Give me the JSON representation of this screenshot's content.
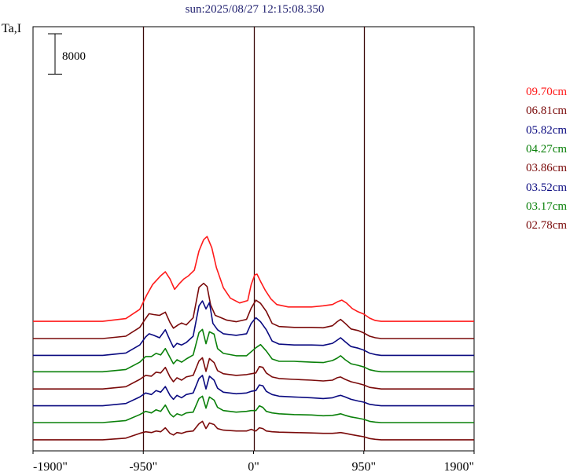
{
  "title": "sun:2025/08/27 12:15:08.350",
  "chart_data": {
    "type": "line",
    "ylabel": "Ta,I",
    "scale_bar": {
      "label": "8000",
      "value": 8000
    },
    "xlim": [
      -1900,
      1900
    ],
    "xticks": [
      {
        "value": -1900,
        "label": "-1900\""
      },
      {
        "value": -950,
        "label": "-950\""
      },
      {
        "value": 0,
        "label": "0\""
      },
      {
        "value": 950,
        "label": "950\""
      },
      {
        "value": 1900,
        "label": "1900\""
      }
    ],
    "vlines": [
      -950,
      0,
      950
    ],
    "grid": false,
    "legend_position": "right",
    "series": [
      {
        "name": "09.70cm",
        "color": "#ff1a1a",
        "baseline": 15500
      },
      {
        "name": "06.81cm",
        "color": "#7a0a0a",
        "baseline": 13350
      },
      {
        "name": "05.82cm",
        "color": "#0a0a80",
        "baseline": 11250
      },
      {
        "name": "04.27cm",
        "color": "#0a800a",
        "baseline": 9200
      },
      {
        "name": "03.86cm",
        "color": "#7a0a0a",
        "baseline": 7050
      },
      {
        "name": "03.52cm",
        "color": "#0a0a80",
        "baseline": 4950
      },
      {
        "name": "03.17cm",
        "color": "#0a800a",
        "baseline": 2850
      },
      {
        "name": "02.78cm",
        "color": "#7a0a0a",
        "baseline": 700
      }
    ],
    "profiles": [
      [
        [
          -1900,
          0
        ],
        [
          -1300,
          0
        ],
        [
          -1100,
          350
        ],
        [
          -980,
          1500
        ],
        [
          -920,
          3300
        ],
        [
          -870,
          4600
        ],
        [
          -800,
          5700
        ],
        [
          -760,
          6200
        ],
        [
          -720,
          5300
        ],
        [
          -680,
          4000
        ],
        [
          -640,
          4700
        ],
        [
          -600,
          5300
        ],
        [
          -560,
          5700
        ],
        [
          -510,
          6400
        ],
        [
          -470,
          8800
        ],
        [
          -430,
          10200
        ],
        [
          -400,
          10600
        ],
        [
          -360,
          9200
        ],
        [
          -320,
          6700
        ],
        [
          -260,
          4200
        ],
        [
          -200,
          2900
        ],
        [
          -120,
          2300
        ],
        [
          -50,
          2600
        ],
        [
          -20,
          4600
        ],
        [
          10,
          5800
        ],
        [
          30,
          5900
        ],
        [
          60,
          5000
        ],
        [
          100,
          3900
        ],
        [
          150,
          2800
        ],
        [
          200,
          2100
        ],
        [
          300,
          1800
        ],
        [
          500,
          1800
        ],
        [
          600,
          1950
        ],
        [
          680,
          2100
        ],
        [
          730,
          2500
        ],
        [
          760,
          2650
        ],
        [
          800,
          2300
        ],
        [
          850,
          1600
        ],
        [
          900,
          1200
        ],
        [
          950,
          900
        ],
        [
          1000,
          400
        ],
        [
          1050,
          100
        ],
        [
          1100,
          0
        ],
        [
          1900,
          0
        ]
      ],
      [
        [
          -1900,
          0
        ],
        [
          -1300,
          0
        ],
        [
          -1100,
          300
        ],
        [
          -980,
          1400
        ],
        [
          -930,
          2500
        ],
        [
          -900,
          3100
        ],
        [
          -860,
          3000
        ],
        [
          -810,
          2900
        ],
        [
          -760,
          3300
        ],
        [
          -720,
          2000
        ],
        [
          -690,
          1300
        ],
        [
          -650,
          1700
        ],
        [
          -620,
          1950
        ],
        [
          -580,
          1700
        ],
        [
          -520,
          2600
        ],
        [
          -470,
          6400
        ],
        [
          -430,
          6900
        ],
        [
          -400,
          6500
        ],
        [
          -370,
          4200
        ],
        [
          -330,
          2900
        ],
        [
          -280,
          2600
        ],
        [
          -230,
          2300
        ],
        [
          -150,
          2100
        ],
        [
          -60,
          2400
        ],
        [
          -20,
          3800
        ],
        [
          20,
          4800
        ],
        [
          60,
          4400
        ],
        [
          110,
          3400
        ],
        [
          160,
          1900
        ],
        [
          220,
          1500
        ],
        [
          350,
          1400
        ],
        [
          500,
          1400
        ],
        [
          600,
          1350
        ],
        [
          680,
          1600
        ],
        [
          720,
          2100
        ],
        [
          750,
          2400
        ],
        [
          790,
          1900
        ],
        [
          840,
          1200
        ],
        [
          900,
          1000
        ],
        [
          950,
          700
        ],
        [
          1000,
          300
        ],
        [
          1050,
          100
        ],
        [
          1100,
          0
        ],
        [
          1900,
          0
        ]
      ],
      [
        [
          -1900,
          0
        ],
        [
          -1300,
          0
        ],
        [
          -1100,
          300
        ],
        [
          -980,
          1300
        ],
        [
          -930,
          2300
        ],
        [
          -900,
          2700
        ],
        [
          -860,
          2500
        ],
        [
          -810,
          2200
        ],
        [
          -760,
          3200
        ],
        [
          -720,
          1900
        ],
        [
          -690,
          1000
        ],
        [
          -660,
          1500
        ],
        [
          -620,
          1300
        ],
        [
          -580,
          1600
        ],
        [
          -520,
          2400
        ],
        [
          -470,
          6200
        ],
        [
          -440,
          6800
        ],
        [
          -410,
          5800
        ],
        [
          -380,
          6600
        ],
        [
          -350,
          4000
        ],
        [
          -310,
          3200
        ],
        [
          -260,
          2700
        ],
        [
          -150,
          2500
        ],
        [
          -60,
          2700
        ],
        [
          -20,
          4000
        ],
        [
          20,
          4700
        ],
        [
          60,
          4200
        ],
        [
          110,
          3200
        ],
        [
          160,
          1800
        ],
        [
          220,
          1400
        ],
        [
          350,
          1300
        ],
        [
          500,
          1300
        ],
        [
          600,
          1250
        ],
        [
          680,
          1500
        ],
        [
          720,
          1900
        ],
        [
          750,
          2200
        ],
        [
          790,
          1700
        ],
        [
          840,
          1100
        ],
        [
          900,
          900
        ],
        [
          950,
          650
        ],
        [
          1000,
          280
        ],
        [
          1050,
          100
        ],
        [
          1100,
          0
        ],
        [
          1900,
          0
        ]
      ],
      [
        [
          -1900,
          0
        ],
        [
          -1300,
          0
        ],
        [
          -1100,
          280
        ],
        [
          -980,
          1200
        ],
        [
          -930,
          1900
        ],
        [
          -880,
          1900
        ],
        [
          -840,
          2300
        ],
        [
          -800,
          2100
        ],
        [
          -760,
          2900
        ],
        [
          -720,
          1800
        ],
        [
          -690,
          1000
        ],
        [
          -660,
          1500
        ],
        [
          -620,
          1200
        ],
        [
          -580,
          1600
        ],
        [
          -520,
          2100
        ],
        [
          -470,
          4900
        ],
        [
          -440,
          5300
        ],
        [
          -410,
          3500
        ],
        [
          -380,
          5000
        ],
        [
          -340,
          4700
        ],
        [
          -310,
          2900
        ],
        [
          -260,
          2300
        ],
        [
          -150,
          2000
        ],
        [
          -60,
          2000
        ],
        [
          -20,
          2500
        ],
        [
          20,
          3000
        ],
        [
          60,
          3400
        ],
        [
          110,
          2600
        ],
        [
          160,
          1600
        ],
        [
          220,
          1300
        ],
        [
          350,
          1300
        ],
        [
          500,
          1200
        ],
        [
          600,
          1150
        ],
        [
          680,
          1400
        ],
        [
          720,
          1700
        ],
        [
          750,
          2000
        ],
        [
          790,
          1500
        ],
        [
          840,
          1000
        ],
        [
          900,
          800
        ],
        [
          950,
          600
        ],
        [
          1000,
          250
        ],
        [
          1050,
          100
        ],
        [
          1100,
          0
        ],
        [
          1900,
          0
        ]
      ],
      [
        [
          -1900,
          0
        ],
        [
          -1300,
          0
        ],
        [
          -1100,
          280
        ],
        [
          -980,
          1200
        ],
        [
          -930,
          1700
        ],
        [
          -880,
          1600
        ],
        [
          -840,
          2100
        ],
        [
          -800,
          2000
        ],
        [
          -760,
          2700
        ],
        [
          -720,
          1500
        ],
        [
          -690,
          900
        ],
        [
          -660,
          1400
        ],
        [
          -620,
          1100
        ],
        [
          -580,
          1500
        ],
        [
          -520,
          1700
        ],
        [
          -470,
          3500
        ],
        [
          -440,
          3900
        ],
        [
          -410,
          2200
        ],
        [
          -380,
          3800
        ],
        [
          -340,
          3300
        ],
        [
          -310,
          2300
        ],
        [
          -260,
          1900
        ],
        [
          -150,
          1700
        ],
        [
          -60,
          1800
        ],
        [
          -20,
          1900
        ],
        [
          20,
          2000
        ],
        [
          50,
          2800
        ],
        [
          80,
          2700
        ],
        [
          110,
          2000
        ],
        [
          160,
          1500
        ],
        [
          220,
          1300
        ],
        [
          350,
          1200
        ],
        [
          500,
          1100
        ],
        [
          600,
          1000
        ],
        [
          680,
          1100
        ],
        [
          720,
          1400
        ],
        [
          750,
          1500
        ],
        [
          790,
          1200
        ],
        [
          840,
          900
        ],
        [
          900,
          700
        ],
        [
          950,
          500
        ],
        [
          1000,
          200
        ],
        [
          1050,
          100
        ],
        [
          1100,
          0
        ],
        [
          1900,
          0
        ]
      ],
      [
        [
          -1900,
          0
        ],
        [
          -1300,
          0
        ],
        [
          -1100,
          280
        ],
        [
          -980,
          1100
        ],
        [
          -930,
          1600
        ],
        [
          -880,
          1400
        ],
        [
          -840,
          1900
        ],
        [
          -800,
          1700
        ],
        [
          -760,
          2400
        ],
        [
          -720,
          1300
        ],
        [
          -690,
          800
        ],
        [
          -660,
          1300
        ],
        [
          -620,
          1000
        ],
        [
          -580,
          1400
        ],
        [
          -520,
          1600
        ],
        [
          -470,
          3400
        ],
        [
          -440,
          3800
        ],
        [
          -410,
          2100
        ],
        [
          -380,
          3700
        ],
        [
          -340,
          3200
        ],
        [
          -310,
          2200
        ],
        [
          -260,
          1700
        ],
        [
          -150,
          1500
        ],
        [
          -60,
          1600
        ],
        [
          -20,
          1800
        ],
        [
          20,
          1900
        ],
        [
          50,
          2600
        ],
        [
          80,
          2500
        ],
        [
          110,
          1800
        ],
        [
          160,
          1400
        ],
        [
          220,
          1200
        ],
        [
          350,
          1100
        ],
        [
          500,
          1000
        ],
        [
          600,
          900
        ],
        [
          680,
          1000
        ],
        [
          720,
          1200
        ],
        [
          750,
          1300
        ],
        [
          790,
          1100
        ],
        [
          840,
          800
        ],
        [
          900,
          600
        ],
        [
          950,
          450
        ],
        [
          1000,
          180
        ],
        [
          1050,
          80
        ],
        [
          1100,
          0
        ],
        [
          1900,
          0
        ]
      ],
      [
        [
          -1900,
          0
        ],
        [
          -1300,
          0
        ],
        [
          -1100,
          250
        ],
        [
          -980,
          1000
        ],
        [
          -930,
          1400
        ],
        [
          -880,
          1200
        ],
        [
          -840,
          1600
        ],
        [
          -800,
          1400
        ],
        [
          -760,
          2200
        ],
        [
          -720,
          1100
        ],
        [
          -690,
          700
        ],
        [
          -660,
          1100
        ],
        [
          -620,
          900
        ],
        [
          -580,
          1200
        ],
        [
          -520,
          1300
        ],
        [
          -470,
          3000
        ],
        [
          -440,
          3300
        ],
        [
          -410,
          1800
        ],
        [
          -380,
          3200
        ],
        [
          -340,
          2800
        ],
        [
          -310,
          1900
        ],
        [
          -260,
          1500
        ],
        [
          -150,
          1300
        ],
        [
          -60,
          1400
        ],
        [
          -20,
          1500
        ],
        [
          20,
          1500
        ],
        [
          50,
          2100
        ],
        [
          80,
          1900
        ],
        [
          110,
          1400
        ],
        [
          160,
          1200
        ],
        [
          220,
          1100
        ],
        [
          350,
          1000
        ],
        [
          500,
          950
        ],
        [
          600,
          850
        ],
        [
          680,
          900
        ],
        [
          720,
          1000
        ],
        [
          750,
          1100
        ],
        [
          790,
          900
        ],
        [
          840,
          700
        ],
        [
          900,
          550
        ],
        [
          950,
          400
        ],
        [
          1000,
          150
        ],
        [
          1050,
          60
        ],
        [
          1100,
          0
        ],
        [
          1900,
          0
        ]
      ],
      [
        [
          -1900,
          0
        ],
        [
          -1300,
          0
        ],
        [
          -1100,
          200
        ],
        [
          -980,
          800
        ],
        [
          -930,
          1000
        ],
        [
          -880,
          900
        ],
        [
          -840,
          1100
        ],
        [
          -800,
          1000
        ],
        [
          -760,
          1500
        ],
        [
          -720,
          800
        ],
        [
          -690,
          600
        ],
        [
          -660,
          900
        ],
        [
          -620,
          800
        ],
        [
          -580,
          1000
        ],
        [
          -520,
          1100
        ],
        [
          -470,
          2000
        ],
        [
          -440,
          2300
        ],
        [
          -410,
          1400
        ],
        [
          -380,
          2100
        ],
        [
          -340,
          1900
        ],
        [
          -310,
          1400
        ],
        [
          -260,
          1200
        ],
        [
          -150,
          1100
        ],
        [
          -60,
          1100
        ],
        [
          -20,
          1300
        ],
        [
          20,
          1100
        ],
        [
          50,
          1500
        ],
        [
          80,
          1400
        ],
        [
          110,
          1100
        ],
        [
          160,
          1000
        ],
        [
          220,
          950
        ],
        [
          350,
          900
        ],
        [
          500,
          850
        ],
        [
          600,
          800
        ],
        [
          680,
          800
        ],
        [
          720,
          850
        ],
        [
          750,
          900
        ],
        [
          790,
          800
        ],
        [
          840,
          650
        ],
        [
          900,
          500
        ],
        [
          950,
          380
        ],
        [
          1000,
          150
        ],
        [
          1050,
          60
        ],
        [
          1100,
          0
        ],
        [
          1900,
          0
        ]
      ]
    ]
  }
}
